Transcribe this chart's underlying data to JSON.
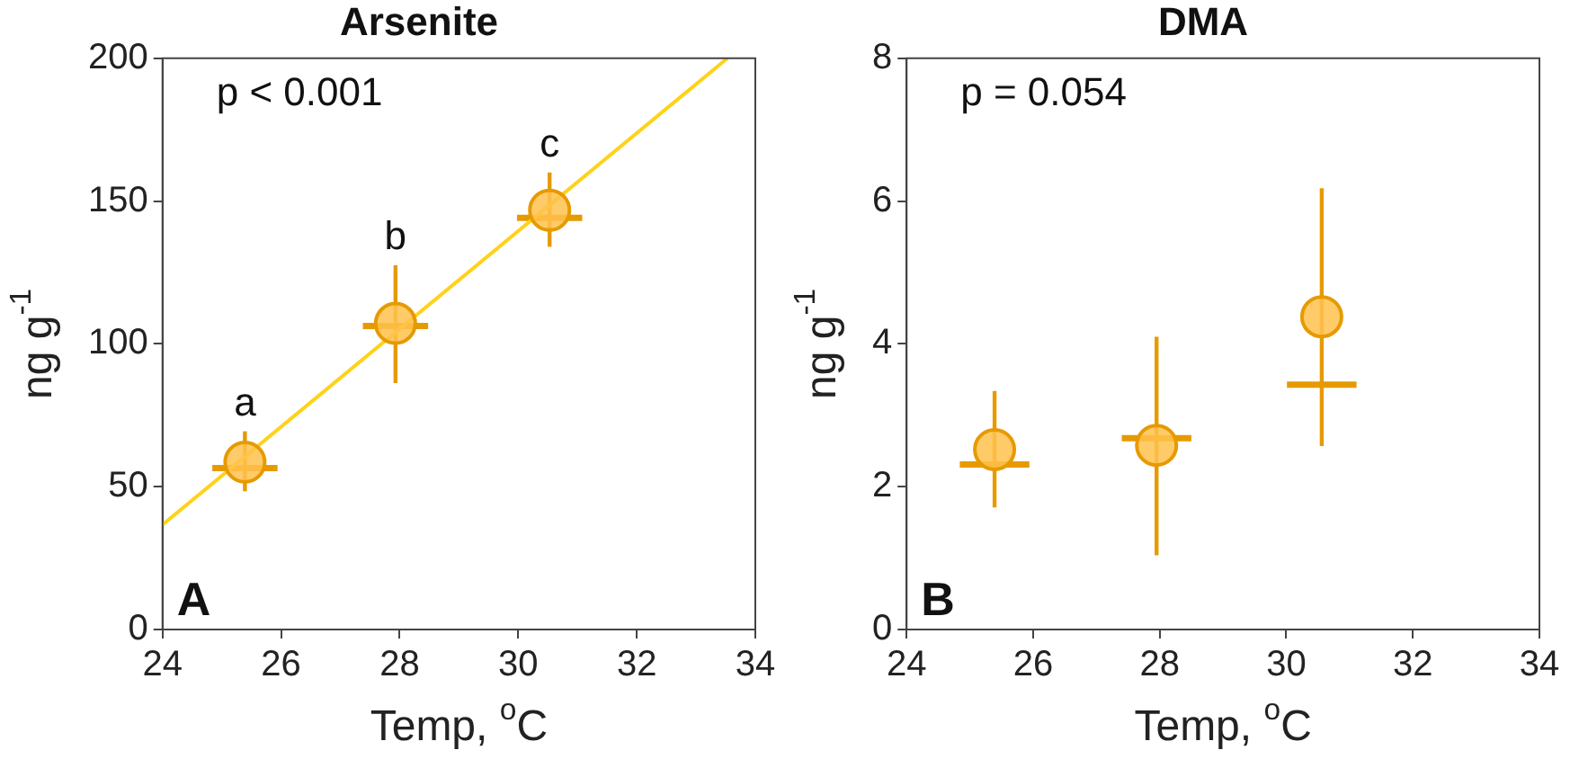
{
  "chart_data": [
    {
      "type": "scatter",
      "title": "Arsenite",
      "xlabel": "Temp, $^{o}$C",
      "ylabel": "ng g$^{-1}$",
      "xlim": [
        24,
        34
      ],
      "xticks": [
        24,
        26,
        28,
        30,
        32,
        34
      ],
      "ylim": [
        0,
        200
      ],
      "yticks": [
        0,
        50,
        100,
        150,
        200
      ],
      "grid": false,
      "legend": false,
      "series": [
        {
          "type": "line",
          "color": "#ffd21a",
          "x": [
            24,
            33.53
          ],
          "values": [
            36.7,
            200
          ],
          "marker": "none",
          "line_style": "solid"
        },
        {
          "type": "line",
          "color": "#e69a00",
          "x": [
            24.84,
            25.94
          ],
          "values": [
            56.5,
            56.5
          ],
          "marker": "none",
          "line_style": "solid"
        },
        {
          "type": "line",
          "color": "#e69a00",
          "x": [
            27.38,
            28.48
          ],
          "values": [
            106.3,
            106.3
          ],
          "marker": "none",
          "line_style": "solid"
        },
        {
          "type": "line",
          "color": "#e69a00",
          "x": [
            29.98,
            31.08
          ],
          "values": [
            144.1,
            144.1
          ],
          "marker": "none",
          "line_style": "solid"
        },
        {
          "color": "#e69a00",
          "x": [
            25.39,
            27.93,
            30.53
          ],
          "values": [
            58.6,
            107.2,
            146.8
          ],
          "marker": "circle",
          "errors": [
            [
              48.4,
              69.4
            ],
            [
              86.3,
              127.5
            ],
            [
              134,
              160
            ]
          ]
        }
      ],
      "annotations": [
        "p < 0.001",
        "A",
        {
          "text": "a",
          "x": 25.39,
          "y": 69.4
        },
        {
          "text": "b",
          "x": 27.93,
          "y": 127.5
        },
        {
          "text": "c",
          "x": 30.53,
          "y": 160
        }
      ]
    },
    {
      "type": "scatter",
      "title": "DMA",
      "xlabel": "Temp, $^{o}$C",
      "ylabel": "ng g$^{-1}$",
      "xlim": [
        24,
        34
      ],
      "xticks": [
        24,
        26,
        28,
        30,
        32,
        34
      ],
      "ylim": [
        0,
        8
      ],
      "yticks": [
        0,
        2,
        4,
        6,
        8
      ],
      "grid": false,
      "legend": false,
      "series": [
        {
          "type": "line",
          "color": "#e69a00",
          "x": [
            24.84,
            25.94
          ],
          "values": [
            2.31,
            2.31
          ],
          "marker": "none",
          "line_style": "solid"
        },
        {
          "type": "line",
          "color": "#e69a00",
          "x": [
            27.4,
            28.5
          ],
          "values": [
            2.68,
            2.68
          ],
          "marker": "none",
          "line_style": "solid"
        },
        {
          "type": "line",
          "color": "#e69a00",
          "x": [
            30.01,
            31.11
          ],
          "values": [
            3.43,
            3.43
          ],
          "marker": "none",
          "line_style": "solid"
        },
        {
          "color": "#e69a00",
          "x": [
            25.39,
            27.95,
            30.56
          ],
          "values": [
            2.52,
            2.58,
            4.38
          ],
          "marker": "circle",
          "errors": [
            [
              1.71,
              3.34
            ],
            [
              1.04,
              4.1
            ],
            [
              2.57,
              6.18
            ]
          ]
        }
      ],
      "annotations": [
        "p = 0.054",
        "B"
      ]
    }
  ]
}
